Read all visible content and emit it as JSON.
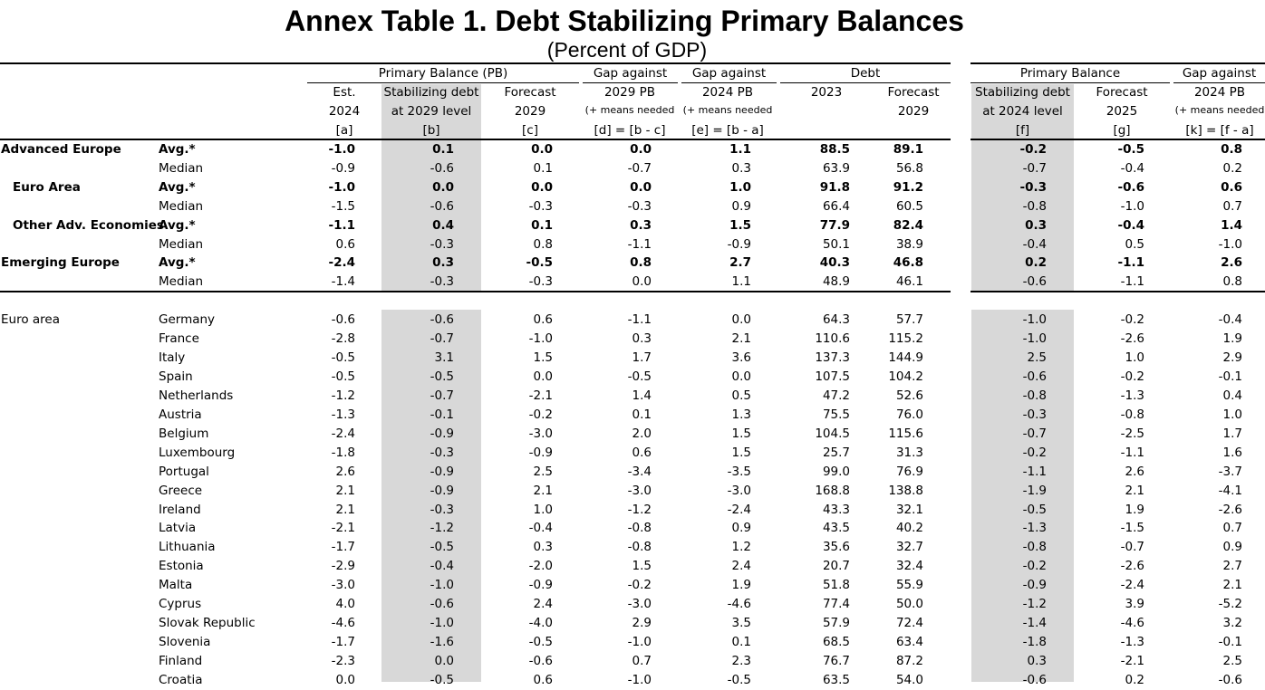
{
  "title": "Annex Table 1. Debt Stabilizing Primary Balances",
  "subtitle": "(Percent of GDP)",
  "headers": {
    "group_pb": "Primary Balance (PB)",
    "group_gap2029": "Gap against",
    "group_gap2024": "Gap against",
    "group_debt": "Debt",
    "group_pb_right": "Primary Balance",
    "group_gap_right": "Gap against",
    "a": [
      "Est.",
      "2024",
      "[a]"
    ],
    "b": [
      "Stabilizing debt",
      "at 2029 level",
      "[b]"
    ],
    "c": [
      "Forecast",
      "2029",
      "[c]"
    ],
    "d": [
      "2029 PB",
      "(+ means needed",
      "[d] = [b - c]"
    ],
    "e": [
      "2024 PB",
      "(+ means needed",
      "[e] = [b - a]"
    ],
    "debt2023": "2023",
    "debt2029": [
      "Forecast",
      "2029"
    ],
    "f": [
      "Stabilizing debt",
      "at 2024 level",
      "[f]"
    ],
    "g": [
      "Forecast",
      "2025",
      "[g]"
    ],
    "k": [
      "2024 PB",
      "(+ means needed",
      "[k] = [f - a]"
    ]
  },
  "summary_rows": [
    {
      "group": "Advanced Europe",
      "stat": "Avg.*",
      "bold": true,
      "indent": false,
      "values": [
        "-1.0",
        "0.1",
        "0.0",
        "0.0",
        "1.1",
        "88.5",
        "89.1",
        "-0.2",
        "-0.5",
        "0.8"
      ]
    },
    {
      "group": "",
      "stat": "Median",
      "bold": false,
      "indent": false,
      "values": [
        "-0.9",
        "-0.6",
        "0.1",
        "-0.7",
        "0.3",
        "63.9",
        "56.8",
        "-0.7",
        "-0.4",
        "0.2"
      ]
    },
    {
      "group": "Euro Area",
      "stat": "Avg.*",
      "bold": true,
      "indent": true,
      "values": [
        "-1.0",
        "0.0",
        "0.0",
        "0.0",
        "1.0",
        "91.8",
        "91.2",
        "-0.3",
        "-0.6",
        "0.6"
      ]
    },
    {
      "group": "",
      "stat": "Median",
      "bold": false,
      "indent": false,
      "values": [
        "-1.5",
        "-0.6",
        "-0.3",
        "-0.3",
        "0.9",
        "66.4",
        "60.5",
        "-0.8",
        "-1.0",
        "0.7"
      ]
    },
    {
      "group": "Other Adv. Economies",
      "stat": "Avg.*",
      "bold": true,
      "indent": true,
      "values": [
        "-1.1",
        "0.4",
        "0.1",
        "0.3",
        "1.5",
        "77.9",
        "82.4",
        "0.3",
        "-0.4",
        "1.4"
      ]
    },
    {
      "group": "",
      "stat": "Median",
      "bold": false,
      "indent": false,
      "values": [
        "0.6",
        "-0.3",
        "0.8",
        "-1.1",
        "-0.9",
        "50.1",
        "38.9",
        "-0.4",
        "0.5",
        "-1.0"
      ]
    },
    {
      "group": "Emerging Europe",
      "stat": "Avg.*",
      "bold": true,
      "indent": false,
      "values": [
        "-2.4",
        "0.3",
        "-0.5",
        "0.8",
        "2.7",
        "40.3",
        "46.8",
        "0.2",
        "-1.1",
        "2.6"
      ]
    },
    {
      "group": "",
      "stat": "Median",
      "bold": false,
      "indent": false,
      "values": [
        "-1.4",
        "-0.3",
        "-0.3",
        "0.0",
        "1.1",
        "48.9",
        "46.1",
        "-0.6",
        "-1.1",
        "0.8"
      ]
    }
  ],
  "euro_area_label": "Euro area",
  "country_rows": [
    {
      "country": "Germany",
      "values": [
        "-0.6",
        "-0.6",
        "0.6",
        "-1.1",
        "0.0",
        "64.3",
        "57.7",
        "-1.0",
        "-0.2",
        "-0.4"
      ]
    },
    {
      "country": "France",
      "values": [
        "-2.8",
        "-0.7",
        "-1.0",
        "0.3",
        "2.1",
        "110.6",
        "115.2",
        "-1.0",
        "-2.6",
        "1.9"
      ]
    },
    {
      "country": "Italy",
      "values": [
        "-0.5",
        "3.1",
        "1.5",
        "1.7",
        "3.6",
        "137.3",
        "144.9",
        "2.5",
        "1.0",
        "2.9"
      ]
    },
    {
      "country": "Spain",
      "values": [
        "-0.5",
        "-0.5",
        "0.0",
        "-0.5",
        "0.0",
        "107.5",
        "104.2",
        "-0.6",
        "-0.2",
        "-0.1"
      ]
    },
    {
      "country": "Netherlands",
      "values": [
        "-1.2",
        "-0.7",
        "-2.1",
        "1.4",
        "0.5",
        "47.2",
        "52.6",
        "-0.8",
        "-1.3",
        "0.4"
      ]
    },
    {
      "country": "Austria",
      "values": [
        "-1.3",
        "-0.1",
        "-0.2",
        "0.1",
        "1.3",
        "75.5",
        "76.0",
        "-0.3",
        "-0.8",
        "1.0"
      ]
    },
    {
      "country": "Belgium",
      "values": [
        "-2.4",
        "-0.9",
        "-3.0",
        "2.0",
        "1.5",
        "104.5",
        "115.6",
        "-0.7",
        "-2.5",
        "1.7"
      ]
    },
    {
      "country": "Luxembourg",
      "values": [
        "-1.8",
        "-0.3",
        "-0.9",
        "0.6",
        "1.5",
        "25.7",
        "31.3",
        "-0.2",
        "-1.1",
        "1.6"
      ]
    },
    {
      "country": "Portugal",
      "values": [
        "2.6",
        "-0.9",
        "2.5",
        "-3.4",
        "-3.5",
        "99.0",
        "76.9",
        "-1.1",
        "2.6",
        "-3.7"
      ]
    },
    {
      "country": "Greece",
      "values": [
        "2.1",
        "-0.9",
        "2.1",
        "-3.0",
        "-3.0",
        "168.8",
        "138.8",
        "-1.9",
        "2.1",
        "-4.1"
      ]
    },
    {
      "country": "Ireland",
      "values": [
        "2.1",
        "-0.3",
        "1.0",
        "-1.2",
        "-2.4",
        "43.3",
        "32.1",
        "-0.5",
        "1.9",
        "-2.6"
      ]
    },
    {
      "country": "Latvia",
      "values": [
        "-2.1",
        "-1.2",
        "-0.4",
        "-0.8",
        "0.9",
        "43.5",
        "40.2",
        "-1.3",
        "-1.5",
        "0.7"
      ]
    },
    {
      "country": "Lithuania",
      "values": [
        "-1.7",
        "-0.5",
        "0.3",
        "-0.8",
        "1.2",
        "35.6",
        "32.7",
        "-0.8",
        "-0.7",
        "0.9"
      ]
    },
    {
      "country": "Estonia",
      "values": [
        "-2.9",
        "-0.4",
        "-2.0",
        "1.5",
        "2.4",
        "20.7",
        "32.4",
        "-0.2",
        "-2.6",
        "2.7"
      ]
    },
    {
      "country": "Malta",
      "values": [
        "-3.0",
        "-1.0",
        "-0.9",
        "-0.2",
        "1.9",
        "51.8",
        "55.9",
        "-0.9",
        "-2.4",
        "2.1"
      ]
    },
    {
      "country": "Cyprus",
      "values": [
        "4.0",
        "-0.6",
        "2.4",
        "-3.0",
        "-4.6",
        "77.4",
        "50.0",
        "-1.2",
        "3.9",
        "-5.2"
      ]
    },
    {
      "country": "Slovak Republic",
      "values": [
        "-4.6",
        "-1.0",
        "-4.0",
        "2.9",
        "3.5",
        "57.9",
        "72.4",
        "-1.4",
        "-4.6",
        "3.2"
      ]
    },
    {
      "country": "Slovenia",
      "values": [
        "-1.7",
        "-1.6",
        "-0.5",
        "-1.0",
        "0.1",
        "68.5",
        "63.4",
        "-1.8",
        "-1.3",
        "-0.1"
      ]
    },
    {
      "country": "Finland",
      "values": [
        "-2.3",
        "0.0",
        "-0.6",
        "0.7",
        "2.3",
        "76.7",
        "87.2",
        "0.3",
        "-2.1",
        "2.5"
      ]
    },
    {
      "country": "Croatia",
      "values": [
        "0.0",
        "-0.5",
        "0.6",
        "-1.0",
        "-0.5",
        "63.5",
        "54.0",
        "-0.6",
        "0.2",
        "-0.6"
      ]
    }
  ],
  "colors": {
    "shade": "#d8d8d8",
    "text": "#000000",
    "rule": "#000000"
  }
}
